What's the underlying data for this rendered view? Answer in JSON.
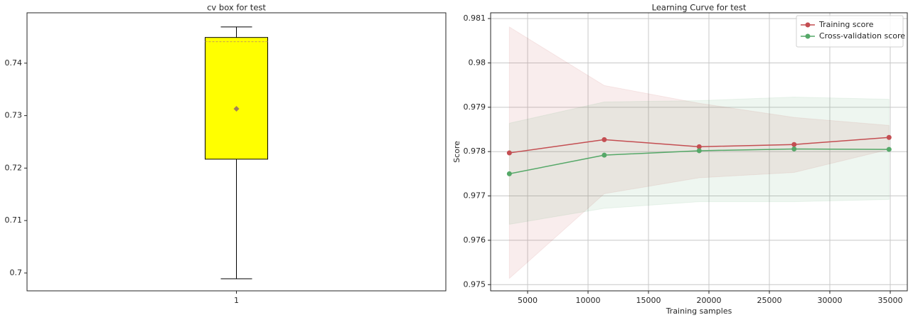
{
  "chart_data": [
    {
      "type": "box",
      "title": "cv box for test",
      "categories": [
        "1"
      ],
      "boxes": [
        {
          "whislo": 0.6989,
          "q1": 0.7217,
          "med": 0.7441,
          "q3": 0.7449,
          "whishi": 0.7469,
          "mean": 0.7313
        }
      ],
      "color": "#ffff00",
      "median_color": "#c8a050",
      "mean_color": "#a0805a",
      "ylim": [
        0.6966,
        0.7496
      ],
      "yticks": [
        0.7,
        0.71,
        0.72,
        0.73,
        0.74
      ],
      "grid": false
    },
    {
      "type": "line",
      "title": "Learning Curve for test",
      "xlabel": "Training samples",
      "ylabel": "Score",
      "x": [
        3490,
        11342,
        19195,
        27047,
        34900
      ],
      "series": [
        {
          "name": "Training score",
          "color": "#c44e52",
          "values": [
            0.97797,
            0.97827,
            0.97811,
            0.97816,
            0.97832
          ],
          "lower": [
            0.97514,
            0.97705,
            0.97741,
            0.97753,
            0.97805
          ],
          "upper": [
            0.98081,
            0.97949,
            0.97909,
            0.97877,
            0.97859
          ]
        },
        {
          "name": "Cross-validation score",
          "color": "#55a868",
          "values": [
            0.9775,
            0.97792,
            0.97802,
            0.97806,
            0.97805
          ],
          "lower": [
            0.97636,
            0.97672,
            0.97687,
            0.97687,
            0.97692
          ],
          "upper": [
            0.97864,
            0.97912,
            0.97915,
            0.97923,
            0.97918
          ]
        }
      ],
      "xlim": [
        1941,
        36412
      ],
      "xticks": [
        5000,
        10000,
        15000,
        20000,
        25000,
        30000,
        35000
      ],
      "ylim": [
        0.97486,
        0.98113
      ],
      "yticks": [
        0.975,
        0.976,
        0.977,
        0.978,
        0.979,
        0.98,
        0.981
      ],
      "grid": true,
      "legend": "upper right"
    }
  ]
}
